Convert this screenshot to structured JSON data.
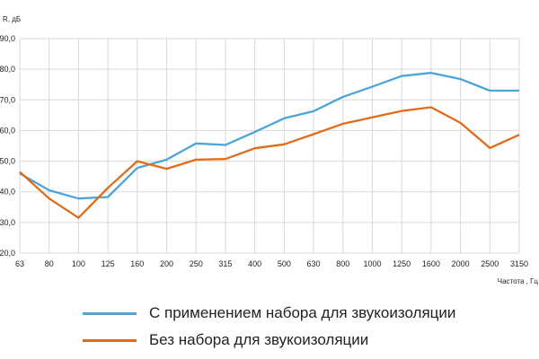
{
  "chart_data": {
    "type": "line",
    "ylabel": "R, дБ",
    "xlabel": "Частота , Гц",
    "ylim": [
      20,
      90
    ],
    "yticks": [
      "20,0",
      "30,0",
      "40,0",
      "50,0",
      "60,0",
      "70,0",
      "80,0",
      "90,0"
    ],
    "categories": [
      "63",
      "80",
      "100",
      "125",
      "160",
      "200",
      "250",
      "315",
      "400",
      "500",
      "630",
      "800",
      "1000",
      "1250",
      "1600",
      "2000",
      "2500",
      "3150"
    ],
    "grid": true,
    "legend_position": "bottom",
    "series": [
      {
        "name": "С применением набора для звукоизоляции",
        "color": "#4ea3d8",
        "values": [
          46,
          40.5,
          37.8,
          38.3,
          47.8,
          50.5,
          55.8,
          55.3,
          59.5,
          64.0,
          66.3,
          71.0,
          74.3,
          77.8,
          78.8,
          76.8,
          73.0,
          73.0
        ]
      },
      {
        "name": "Без набора для звукоизоляции",
        "color": "#e06c1a",
        "values": [
          46.5,
          37.8,
          31.5,
          41.3,
          50.0,
          47.5,
          50.5,
          50.7,
          54.2,
          55.5,
          58.8,
          62.2,
          64.3,
          66.4,
          67.6,
          62.5,
          54.3,
          58.6
        ]
      }
    ]
  }
}
